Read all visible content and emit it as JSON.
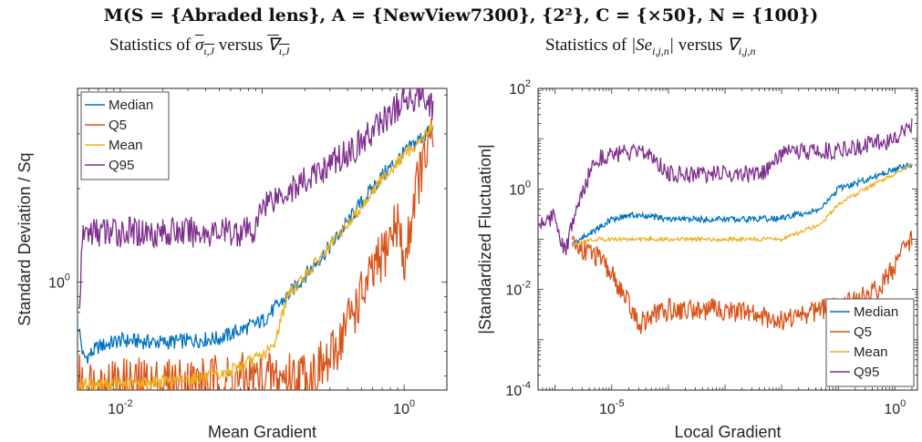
{
  "title": "M(S = {Abraded lens}, A = {NewView7300}, {2²}, C = {×50}, N = {100})",
  "subtitles": {
    "left": {
      "prefix": "Statistics of",
      "sym1": "σ",
      "sub1": "ι,J",
      "mid": "versus",
      "sym2": "∇",
      "sub2": "ι,J"
    },
    "right": {
      "prefix": "Statistics of",
      "sym1": "|Se",
      "sub1": "i,j,n",
      "close": "|",
      "mid": "versus",
      "sym2": "∇",
      "sub2": "i,j,n"
    }
  },
  "colors": {
    "Median": "#0072BD",
    "Q5": "#D95319",
    "Mean": "#EDB120",
    "Q95": "#7E2F8E"
  },
  "chart_data": [
    {
      "type": "line",
      "xlabel": "Mean Gradient",
      "ylabel": "Standard Deviation / Sq",
      "xscale": "log",
      "yscale": "log",
      "xlim": [
        0.005,
        2.0
      ],
      "ylim": [
        0.45,
        4.2
      ],
      "xticks": [
        {
          "value": 0.01,
          "base": "10",
          "exp": "-2"
        },
        {
          "value": 1,
          "base": "10",
          "exp": "0"
        }
      ],
      "yticks": [
        {
          "value": 1,
          "base": "10",
          "exp": "0"
        }
      ],
      "grid": false,
      "legend": "top-left",
      "series": [
        {
          "name": "Median",
          "points": [
            [
              0.0051,
              0.72
            ],
            [
              0.0055,
              0.57
            ],
            [
              0.006,
              0.58
            ],
            [
              0.007,
              0.62
            ],
            [
              0.01,
              0.65
            ],
            [
              0.02,
              0.64
            ],
            [
              0.05,
              0.66
            ],
            [
              0.07,
              0.7
            ],
            [
              0.1,
              0.75
            ],
            [
              0.15,
              0.9
            ],
            [
              0.2,
              1.05
            ],
            [
              0.3,
              1.3
            ],
            [
              0.5,
              1.8
            ],
            [
              0.7,
              2.2
            ],
            [
              1.0,
              2.6
            ],
            [
              1.3,
              2.9
            ],
            [
              1.6,
              3.1
            ]
          ]
        },
        {
          "name": "Q5",
          "points": [
            [
              0.0051,
              0.48
            ],
            [
              0.0055,
              0.47
            ],
            [
              0.01,
              0.47
            ],
            [
              0.02,
              0.47
            ],
            [
              0.05,
              0.48
            ],
            [
              0.1,
              0.49
            ],
            [
              0.2,
              0.5
            ],
            [
              0.3,
              0.55
            ],
            [
              0.4,
              0.75
            ],
            [
              0.5,
              0.9
            ],
            [
              0.7,
              1.2
            ],
            [
              0.9,
              1.6
            ],
            [
              1.0,
              1.1
            ],
            [
              1.2,
              2.0
            ],
            [
              1.4,
              2.5
            ],
            [
              1.6,
              2.9
            ]
          ]
        },
        {
          "name": "Mean",
          "points": [
            [
              0.0051,
              0.47
            ],
            [
              0.01,
              0.47
            ],
            [
              0.02,
              0.48
            ],
            [
              0.05,
              0.5
            ],
            [
              0.1,
              0.58
            ],
            [
              0.12,
              0.62
            ],
            [
              0.15,
              0.9
            ],
            [
              0.2,
              1.05
            ],
            [
              0.3,
              1.3
            ],
            [
              0.5,
              1.75
            ],
            [
              0.7,
              2.15
            ],
            [
              1.0,
              2.55
            ],
            [
              1.3,
              2.85
            ],
            [
              1.6,
              3.2
            ]
          ]
        },
        {
          "name": "Q95",
          "points": [
            [
              0.0051,
              0.8
            ],
            [
              0.0055,
              1.45
            ],
            [
              0.01,
              1.45
            ],
            [
              0.05,
              1.45
            ],
            [
              0.09,
              1.46
            ],
            [
              0.1,
              1.8
            ],
            [
              0.2,
              2.1
            ],
            [
              0.3,
              2.4
            ],
            [
              0.5,
              2.8
            ],
            [
              0.7,
              3.3
            ],
            [
              1.0,
              3.8
            ],
            [
              1.3,
              4.1
            ],
            [
              1.6,
              3.7
            ]
          ]
        }
      ]
    },
    {
      "type": "line",
      "xlabel": "Local Gradient",
      "ylabel": "|Standardized Fluctuation|",
      "xscale": "log",
      "yscale": "log",
      "xlim": [
        5e-07,
        2.5
      ],
      "ylim": [
        0.0001,
        100
      ],
      "xticks": [
        {
          "value": 1e-05,
          "base": "10",
          "exp": "-5"
        },
        {
          "value": 1,
          "base": "10",
          "exp": "0"
        }
      ],
      "yticks": [
        {
          "value": 0.0001,
          "base": "10",
          "exp": "-4"
        },
        {
          "value": 0.01,
          "base": "10",
          "exp": "-2"
        },
        {
          "value": 1,
          "base": "10",
          "exp": "0"
        },
        {
          "value": 100,
          "base": "10",
          "exp": "2"
        }
      ],
      "grid": false,
      "legend": "bottom-right",
      "series": [
        {
          "name": "Median",
          "points": [
            [
              2e-06,
              0.08
            ],
            [
              5e-06,
              0.15
            ],
            [
              1e-05,
              0.25
            ],
            [
              2e-05,
              0.3
            ],
            [
              5e-05,
              0.28
            ],
            [
              0.0001,
              0.25
            ],
            [
              0.001,
              0.25
            ],
            [
              0.01,
              0.26
            ],
            [
              0.05,
              0.4
            ],
            [
              0.1,
              1.0
            ],
            [
              0.3,
              1.5
            ],
            [
              1.0,
              2.5
            ],
            [
              2.0,
              3.0
            ]
          ]
        },
        {
          "name": "Q5",
          "points": [
            [
              2e-06,
              0.08
            ],
            [
              5e-06,
              0.05
            ],
            [
              1e-05,
              0.02
            ],
            [
              2e-05,
              0.005
            ],
            [
              3e-05,
              0.002
            ],
            [
              5e-05,
              0.003
            ],
            [
              0.0001,
              0.004
            ],
            [
              0.001,
              0.004
            ],
            [
              0.01,
              0.0025
            ],
            [
              0.05,
              0.004
            ],
            [
              0.2,
              0.006
            ],
            [
              0.5,
              0.01
            ],
            [
              1.0,
              0.03
            ],
            [
              2.0,
              0.1
            ]
          ]
        },
        {
          "name": "Mean",
          "points": [
            [
              2e-06,
              0.08
            ],
            [
              5e-06,
              0.1
            ],
            [
              1e-05,
              0.1
            ],
            [
              0.0001,
              0.1
            ],
            [
              0.001,
              0.1
            ],
            [
              0.01,
              0.1
            ],
            [
              0.05,
              0.2
            ],
            [
              0.1,
              0.5
            ],
            [
              0.3,
              1.0
            ],
            [
              1.0,
              2.0
            ],
            [
              2.0,
              3.0
            ]
          ]
        },
        {
          "name": "Q95",
          "points": [
            [
              5e-07,
              0.2
            ],
            [
              1e-06,
              0.3
            ],
            [
              1.5e-06,
              0.05
            ],
            [
              2e-06,
              0.2
            ],
            [
              5e-06,
              4.0
            ],
            [
              1e-05,
              5.0
            ],
            [
              2e-05,
              5.0
            ],
            [
              5e-05,
              5.0
            ],
            [
              0.0001,
              2.0
            ],
            [
              0.001,
              2.0
            ],
            [
              0.005,
              2.0
            ],
            [
              0.01,
              5.0
            ],
            [
              0.1,
              6.0
            ],
            [
              0.5,
              8.0
            ],
            [
              1.0,
              10.0
            ],
            [
              2.0,
              20.0
            ]
          ]
        }
      ]
    }
  ]
}
